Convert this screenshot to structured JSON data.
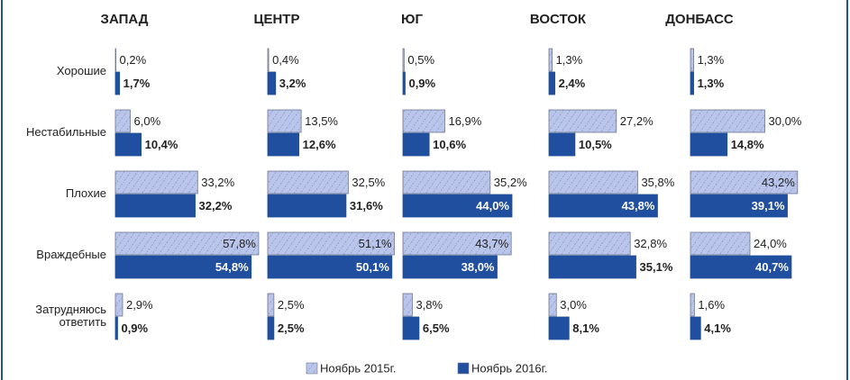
{
  "chart_data": {
    "type": "bar",
    "categories": [
      "Хорошие",
      "Нестабильные",
      "Плохие",
      "Враждебные",
      "Затрудняюсь ответить"
    ],
    "series": [
      {
        "name": "Ноябрь 2015г.",
        "color": "#b9c5ea"
      },
      {
        "name": "Ноябрь 2016г.",
        "color": "#1f4f9e"
      }
    ],
    "xlim": [
      0,
      60
    ],
    "panels": [
      {
        "title": "ЗАПАД",
        "series": [
          {
            "values": [
              0.2,
              6.0,
              33.2,
              57.8,
              2.9
            ],
            "value_labels": [
              "0,2%",
              "6,0%",
              "33,2%",
              "57,8%",
              "2,9%"
            ]
          },
          {
            "values": [
              1.7,
              10.4,
              32.2,
              54.8,
              0.9
            ],
            "value_labels": [
              "1,7%",
              "10,4%",
              "32,2%",
              "54,8%",
              "0,9%"
            ]
          }
        ]
      },
      {
        "title": "ЦЕНТР",
        "series": [
          {
            "values": [
              0.4,
              13.5,
              32.5,
              51.1,
              2.5
            ],
            "value_labels": [
              "0,4%",
              "13,5%",
              "32,5%",
              "51,1%",
              "2,5%"
            ]
          },
          {
            "values": [
              3.2,
              12.6,
              31.6,
              50.1,
              2.5
            ],
            "value_labels": [
              "3,2%",
              "12,6%",
              "31,6%",
              "50,1%",
              "2,5%"
            ]
          }
        ]
      },
      {
        "title": "ЮГ",
        "series": [
          {
            "values": [
              0.5,
              16.9,
              35.2,
              43.7,
              3.8
            ],
            "value_labels": [
              "0,5%",
              "16,9%",
              "35,2%",
              "43,7%",
              "3,8%"
            ]
          },
          {
            "values": [
              0.9,
              10.6,
              44.0,
              38.0,
              6.5
            ],
            "value_labels": [
              "0,9%",
              "10,6%",
              "44,0%",
              "38,0%",
              "6,5%"
            ]
          }
        ]
      },
      {
        "title": "ВОСТОК",
        "series": [
          {
            "values": [
              1.3,
              27.2,
              35.8,
              32.8,
              3.0
            ],
            "value_labels": [
              "1,3%",
              "27,2%",
              "35,8%",
              "32,8%",
              "3,0%"
            ]
          },
          {
            "values": [
              2.4,
              10.5,
              43.8,
              35.1,
              8.1
            ],
            "value_labels": [
              "2,4%",
              "10,5%",
              "43,8%",
              "35,1%",
              "8,1%"
            ]
          }
        ]
      },
      {
        "title": "ДОНБАСС",
        "series": [
          {
            "values": [
              1.3,
              30.0,
              43.2,
              24.0,
              1.6
            ],
            "value_labels": [
              "1,3%",
              "30,0%",
              "43,2%",
              "24,0%",
              "1,6%"
            ]
          },
          {
            "values": [
              1.3,
              14.8,
              39.1,
              40.7,
              4.1
            ],
            "value_labels": [
              "1,3%",
              "14,8%",
              "39,1%",
              "40,7%",
              "4,1%"
            ]
          }
        ]
      }
    ]
  }
}
